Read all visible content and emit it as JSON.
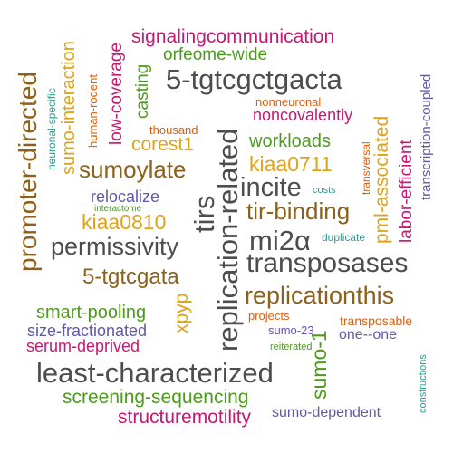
{
  "colors": {
    "brown": "#8c6119",
    "gray": "#4d4d4d",
    "green": "#4d9a1f",
    "magenta": "#c41973",
    "purple": "#6059a8",
    "orange": "#d95f0e",
    "gold": "#e0a316",
    "teal": "#2a9d8f"
  },
  "words": [
    "signalingcommunication",
    "orfeome-wide",
    "5-tgtcgctgacta",
    "nonneuronal",
    "noncovalently",
    "thousand",
    "workloads",
    "corest1",
    "kiaa0711",
    "sumoylate",
    "incite",
    "tir-binding",
    "costs",
    "relocalize",
    "interactome",
    "kiaa0810",
    "mi2α",
    "duplicate",
    "permissivity",
    "transposases",
    "5-tgtcgata",
    "replicationthis",
    "smart-pooling",
    "projects",
    "size-fractionated",
    "sumo-23",
    "transposable",
    "serum-deprived",
    "one--one",
    "reiterated",
    "least-characterized",
    "screening-sequencing",
    "structuremotility",
    "sumo-dependent",
    "promoter-directed",
    "neuronal-specific",
    "sumo-interaction",
    "human-rodent",
    "low-coverage",
    "casting",
    "tirs",
    "replication-related",
    "xpyp",
    "sumo-1",
    "transversal",
    "pml-associated",
    "labor-efficient",
    "transcription-coupled",
    "constructions"
  ]
}
